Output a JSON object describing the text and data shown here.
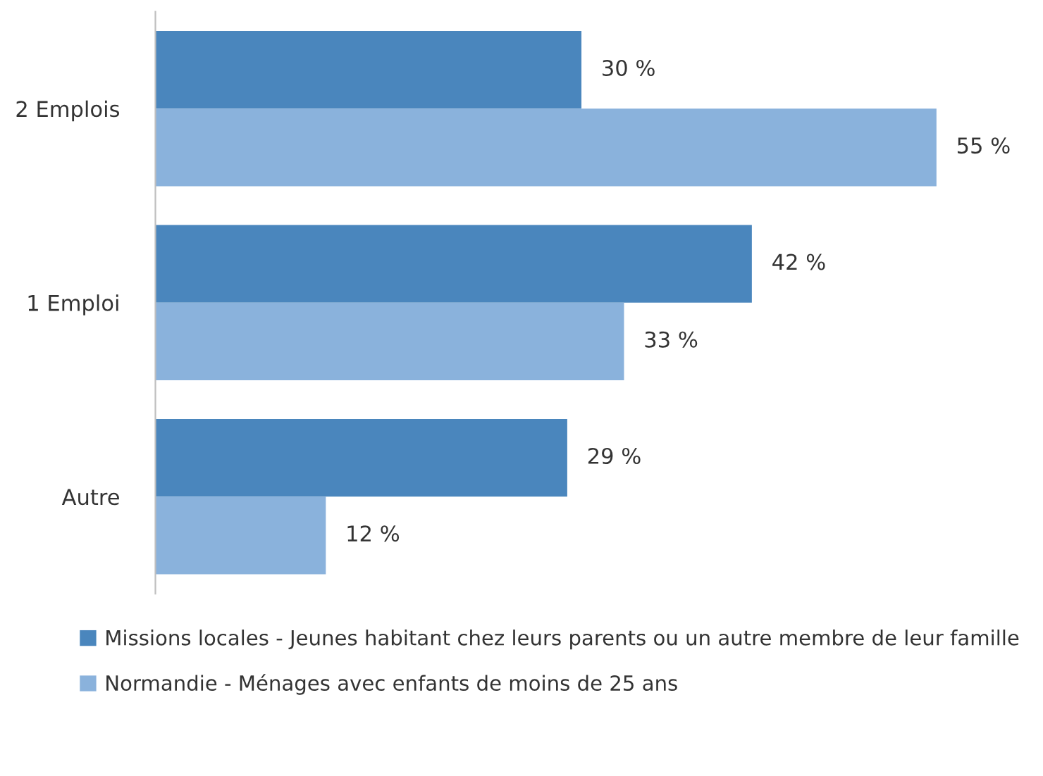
{
  "chart_data": {
    "type": "bar",
    "orientation": "horizontal",
    "categories": [
      "2 Emplois",
      "1 Emploi",
      "Autre"
    ],
    "legend": "bottom",
    "series": [
      {
        "name": "Missions locales - Jeunes habitant chez leurs parents ou un autre membre de leur famille",
        "color": "#4a86bd",
        "values": [
          30,
          42,
          29
        ],
        "value_labels": [
          "30 %",
          "42 %",
          "29 %"
        ]
      },
      {
        "name": "Normandie - Ménages avec enfants de moins de 25 ans",
        "color": "#8ab2dc",
        "values": [
          55,
          33,
          12
        ],
        "value_labels": [
          "55 %",
          "33 %",
          "12 %"
        ]
      }
    ]
  }
}
